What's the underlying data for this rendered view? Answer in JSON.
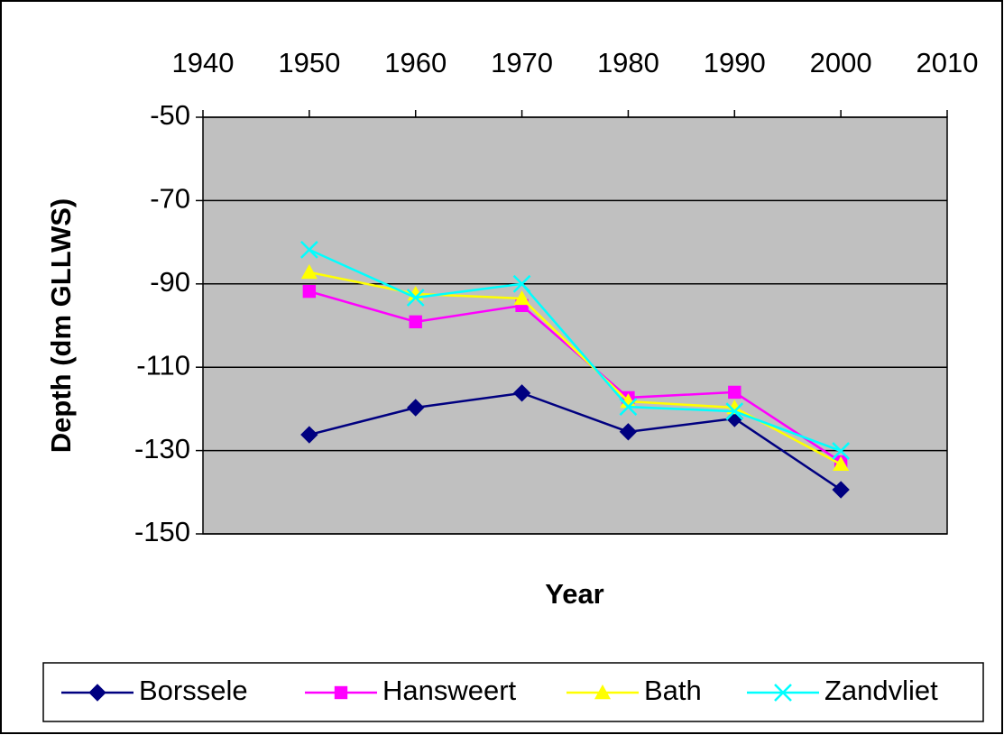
{
  "chart_data": {
    "type": "line",
    "x_label": "Year",
    "y_label": "Depth (dm GLLWS)",
    "x": [
      1950,
      1960,
      1970,
      1980,
      1990,
      2000
    ],
    "series": [
      {
        "name": "Borssele",
        "color": "#000080",
        "marker": "diamond",
        "values": [
          -126.2,
          -119.7,
          -116.2,
          -125.5,
          -122.3,
          -139.4
        ]
      },
      {
        "name": "Hansweert",
        "color": "#ff00ff",
        "marker": "square",
        "values": [
          -91.8,
          -99.1,
          -95.2,
          -117.3,
          -116,
          -132.7
        ]
      },
      {
        "name": "Bath",
        "color": "#ffff00",
        "marker": "triangle",
        "values": [
          -87.2,
          -92.4,
          -93.5,
          -118.2,
          -119.7,
          -133.3
        ]
      },
      {
        "name": "Zandvliet",
        "color": "#00ffff",
        "marker": "x",
        "values": [
          -81.8,
          -93.3,
          -90,
          -119.5,
          -120.6,
          -130.1
        ]
      }
    ],
    "xlim": [
      1940,
      2010
    ],
    "xticks": [
      1940,
      1950,
      1960,
      1970,
      1980,
      1990,
      2000,
      2010
    ],
    "ylim": [
      -150,
      -50
    ],
    "yticks": [
      -150,
      -130,
      -110,
      -90,
      -70,
      -50
    ],
    "grid": true,
    "xaxis_position": "top",
    "legend": "bottom",
    "plot_background": "#c0c0c0"
  }
}
